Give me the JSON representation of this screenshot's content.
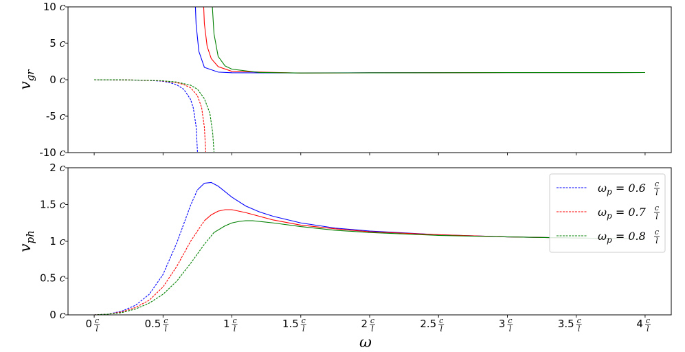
{
  "chart_data": [
    {
      "type": "line",
      "ylabel": "v_gr",
      "ylim": [
        -10,
        10
      ],
      "yticks": [
        {
          "value": 10,
          "label": "10"
        },
        {
          "value": 5,
          "label": "5"
        },
        {
          "value": 0,
          "label": "0"
        },
        {
          "value": -5,
          "label": "-5"
        },
        {
          "value": -10,
          "label": "-10"
        }
      ],
      "y_unit": "c",
      "series": [
        {
          "color": "#0000ff",
          "dashed_x": [
            0.0,
            0.2,
            0.4,
            0.5,
            0.55,
            0.6,
            0.65,
            0.7,
            0.72,
            0.74,
            0.75
          ],
          "dashed_y": [
            0.0,
            -0.02,
            -0.09,
            -0.21,
            -0.4,
            -0.7,
            -1.3,
            -2.7,
            -3.9,
            -6.4,
            -9.9
          ],
          "solid_x": [
            0.735,
            0.74,
            0.76,
            0.8,
            0.9,
            1.0,
            1.5,
            2.0,
            3.0,
            4.0
          ],
          "solid_y": [
            10,
            7.6,
            3.9,
            1.7,
            1.05,
            0.96,
            0.94,
            0.96,
            0.98,
            0.99
          ]
        },
        {
          "color": "#ff0000",
          "dashed_x": [
            0.0,
            0.2,
            0.4,
            0.5,
            0.6,
            0.65,
            0.7,
            0.75,
            0.78,
            0.8,
            0.81
          ],
          "dashed_y": [
            0.0,
            -0.02,
            -0.08,
            -0.17,
            -0.4,
            -0.66,
            -1.1,
            -2.2,
            -3.8,
            -6.5,
            -9.9
          ],
          "solid_x": [
            0.795,
            0.8,
            0.82,
            0.85,
            0.9,
            1.0,
            1.5,
            2.0,
            3.0,
            4.0
          ],
          "solid_y": [
            10,
            7.7,
            4.6,
            2.9,
            1.8,
            1.15,
            0.92,
            0.95,
            0.98,
            0.99
          ]
        },
        {
          "color": "#008000",
          "dashed_x": [
            0.0,
            0.2,
            0.4,
            0.5,
            0.6,
            0.7,
            0.75,
            0.8,
            0.84,
            0.86,
            0.87
          ],
          "dashed_y": [
            0.0,
            -0.01,
            -0.07,
            -0.15,
            -0.32,
            -0.75,
            -1.3,
            -2.6,
            -4.6,
            -7.2,
            -9.9
          ],
          "solid_x": [
            0.858,
            0.87,
            0.9,
            0.95,
            1.0,
            1.2,
            1.5,
            2.0,
            3.0,
            4.0
          ],
          "solid_y": [
            10,
            6.3,
            3.2,
            1.9,
            1.45,
            1.0,
            0.93,
            0.95,
            0.98,
            0.99
          ]
        }
      ]
    },
    {
      "type": "line",
      "xlabel": "ω",
      "ylabel": "v_ph",
      "xlim": [
        -0.19,
        4.19
      ],
      "ylim": [
        0,
        2
      ],
      "xticks": [
        {
          "value": 0,
          "label": "0"
        },
        {
          "value": 0.5,
          "label": "0.5"
        },
        {
          "value": 1,
          "label": "1"
        },
        {
          "value": 1.5,
          "label": "1.5"
        },
        {
          "value": 2,
          "label": "2"
        },
        {
          "value": 2.5,
          "label": "2.5"
        },
        {
          "value": 3,
          "label": "3"
        },
        {
          "value": 3.5,
          "label": "3.5"
        },
        {
          "value": 4,
          "label": "4"
        }
      ],
      "x_unit_num": "c",
      "x_unit_den": "l",
      "yticks": [
        {
          "value": 2,
          "label": "2"
        },
        {
          "value": 1.5,
          "label": "1.5"
        },
        {
          "value": 1,
          "label": "1"
        },
        {
          "value": 0.5,
          "label": "0.5"
        },
        {
          "value": 0,
          "label": "0"
        }
      ],
      "y_unit": "c",
      "legend_position": "top-right",
      "series": [
        {
          "name": "ω_p = 0.6",
          "color": "#0000ff",
          "dashed_x": [
            0.0,
            0.1,
            0.2,
            0.3,
            0.4,
            0.5,
            0.6,
            0.7,
            0.75
          ],
          "dashed_y": [
            0.0,
            0.01,
            0.05,
            0.13,
            0.28,
            0.55,
            0.98,
            1.49,
            1.7
          ],
          "solid_x": [
            0.75,
            0.8,
            0.85,
            0.9,
            1.0,
            1.1,
            1.2,
            1.3,
            1.5,
            1.75,
            2.0,
            2.5,
            3.0,
            3.5,
            4.0
          ],
          "solid_y": [
            1.7,
            1.79,
            1.8,
            1.75,
            1.6,
            1.48,
            1.4,
            1.34,
            1.25,
            1.18,
            1.14,
            1.09,
            1.06,
            1.045,
            1.03
          ]
        },
        {
          "name": "ω_p = 0.7",
          "color": "#ff0000",
          "dashed_x": [
            0.0,
            0.1,
            0.2,
            0.3,
            0.4,
            0.5,
            0.6,
            0.7,
            0.8
          ],
          "dashed_y": [
            0.0,
            0.01,
            0.04,
            0.1,
            0.2,
            0.38,
            0.66,
            1.0,
            1.28
          ],
          "solid_x": [
            0.8,
            0.85,
            0.9,
            0.95,
            1.0,
            1.1,
            1.2,
            1.3,
            1.5,
            1.75,
            2.0,
            2.5,
            3.0,
            3.5,
            4.0
          ],
          "solid_y": [
            1.28,
            1.36,
            1.41,
            1.43,
            1.43,
            1.39,
            1.34,
            1.29,
            1.22,
            1.17,
            1.13,
            1.09,
            1.06,
            1.045,
            1.03
          ]
        },
        {
          "name": "ω_p = 0.8",
          "color": "#008000",
          "dashed_x": [
            0.0,
            0.1,
            0.2,
            0.3,
            0.4,
            0.5,
            0.6,
            0.7,
            0.8,
            0.87
          ],
          "dashed_y": [
            0.0,
            0.01,
            0.03,
            0.08,
            0.16,
            0.28,
            0.46,
            0.7,
            0.96,
            1.12
          ],
          "solid_x": [
            0.87,
            0.95,
            1.0,
            1.05,
            1.1,
            1.15,
            1.2,
            1.3,
            1.5,
            1.75,
            2.0,
            2.5,
            3.0,
            3.5,
            4.0
          ],
          "solid_y": [
            1.12,
            1.21,
            1.25,
            1.27,
            1.28,
            1.28,
            1.27,
            1.25,
            1.2,
            1.15,
            1.12,
            1.08,
            1.06,
            1.045,
            1.03
          ]
        }
      ],
      "legend_unit_num": "c",
      "legend_unit_den": "l"
    }
  ]
}
